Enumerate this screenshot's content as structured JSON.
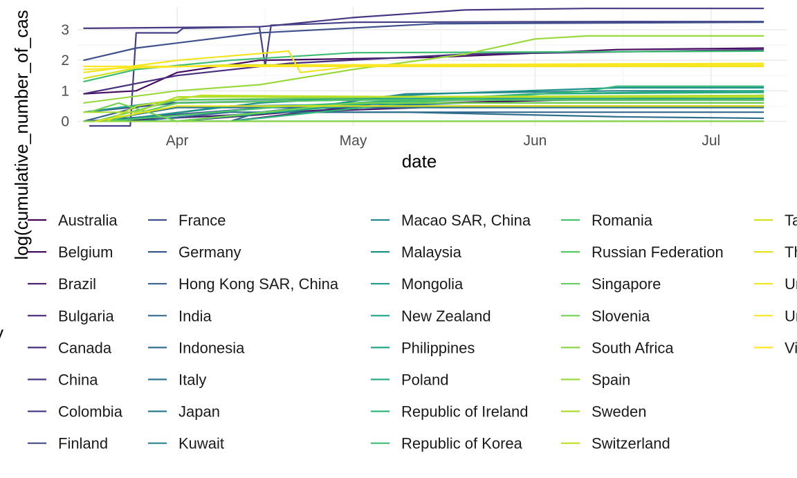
{
  "chart_data": {
    "type": "line",
    "title": "",
    "xlabel": "date",
    "ylabel": "log(cumulative_number_of_cas",
    "legend_title": "y",
    "legend_position": "bottom",
    "grid": true,
    "xlim": [
      "2020-03-15",
      "2020-07-14"
    ],
    "ylim": [
      -0.15,
      3.75
    ],
    "x_ticks": [
      {
        "date": "2020-04-01",
        "label": "Apr"
      },
      {
        "date": "2020-05-01",
        "label": "May"
      },
      {
        "date": "2020-06-01",
        "label": "Jun"
      },
      {
        "date": "2020-07-01",
        "label": "Jul"
      }
    ],
    "y_ticks": [
      0,
      1,
      2,
      3
    ],
    "series": [
      {
        "name": "Australia",
        "color": "#440154",
        "points": [
          [
            "2020-04-01",
            0
          ],
          [
            "2020-04-20",
            0.3
          ],
          [
            "2020-05-15",
            0.6
          ],
          [
            "2020-07-10",
            0.85
          ]
        ]
      },
      {
        "name": "Belgium",
        "color": "#450C5F",
        "points": [
          [
            "2020-03-16",
            0.9
          ],
          [
            "2020-03-25",
            1.0
          ],
          [
            "2020-04-01",
            1.6
          ],
          [
            "2020-04-15",
            2.0
          ],
          [
            "2020-05-15",
            2.1
          ],
          [
            "2020-06-15",
            2.35
          ],
          [
            "2020-07-10",
            2.4
          ]
        ]
      },
      {
        "name": "Brazil",
        "color": "#46186A",
        "points": [
          [
            "2020-03-20",
            0
          ],
          [
            "2020-04-20",
            0.3
          ],
          [
            "2020-05-20",
            0.5
          ],
          [
            "2020-07-10",
            0.5
          ]
        ]
      },
      {
        "name": "Bulgaria",
        "color": "#482373",
        "points": [
          [
            "2020-04-10",
            0
          ],
          [
            "2020-05-10",
            0.7
          ],
          [
            "2020-07-10",
            0.7
          ]
        ]
      },
      {
        "name": "Canada",
        "color": "#482D7B",
        "points": [
          [
            "2020-03-16",
            0.9
          ],
          [
            "2020-04-01",
            1.5
          ],
          [
            "2020-04-20",
            1.9
          ],
          [
            "2020-05-20",
            2.2
          ],
          [
            "2020-07-10",
            2.35
          ]
        ]
      },
      {
        "name": "China",
        "color": "#473681",
        "points": [
          [
            "2020-03-16",
            3.05
          ],
          [
            "2020-04-15",
            3.1
          ],
          [
            "2020-04-18",
            3.15
          ],
          [
            "2020-05-01",
            3.4
          ],
          [
            "2020-05-20",
            3.65
          ],
          [
            "2020-06-10",
            3.7
          ],
          [
            "2020-07-10",
            3.7
          ]
        ]
      },
      {
        "name": "Colombia",
        "color": "#453F86",
        "points": [
          [
            "2020-03-17",
            -0.15
          ],
          [
            "2020-03-24",
            -0.15
          ],
          [
            "2020-03-25",
            2.9
          ],
          [
            "2020-04-01",
            2.9
          ],
          [
            "2020-04-02",
            3.05
          ],
          [
            "2020-04-15",
            3.1
          ],
          [
            "2020-04-16",
            1.8
          ],
          [
            "2020-04-17",
            3.15
          ],
          [
            "2020-04-25",
            3.2
          ],
          [
            "2020-05-01",
            3.25
          ],
          [
            "2020-06-15",
            3.27
          ],
          [
            "2020-07-10",
            3.27
          ]
        ]
      },
      {
        "name": "Finland",
        "color": "#42488A",
        "points": [
          [
            "2020-03-16",
            0
          ],
          [
            "2020-04-20",
            0.5
          ],
          [
            "2020-07-10",
            0.5
          ]
        ]
      },
      {
        "name": "France",
        "color": "#3F508C",
        "points": [
          [
            "2020-03-16",
            2.0
          ],
          [
            "2020-03-25",
            2.4
          ],
          [
            "2020-04-15",
            2.9
          ],
          [
            "2020-05-15",
            3.2
          ],
          [
            "2020-07-10",
            3.25
          ]
        ]
      },
      {
        "name": "Germany",
        "color": "#3B588C",
        "points": [
          [
            "2020-03-16",
            0.3
          ],
          [
            "2020-04-01",
            0.6
          ],
          [
            "2020-05-01",
            0.7
          ],
          [
            "2020-07-10",
            0.75
          ]
        ]
      },
      {
        "name": "Hong Kong SAR, China",
        "color": "#37608D",
        "points": [
          [
            "2020-03-16",
            0
          ],
          [
            "2020-03-28",
            0.6
          ],
          [
            "2020-05-01",
            0.7
          ],
          [
            "2020-07-10",
            0.7
          ]
        ]
      },
      {
        "name": "India",
        "color": "#33678D",
        "points": [
          [
            "2020-03-20",
            0
          ],
          [
            "2020-04-10",
            0
          ],
          [
            "2020-04-15",
            0.3
          ],
          [
            "2020-05-10",
            0.3
          ],
          [
            "2020-06-10",
            0.3
          ],
          [
            "2020-07-10",
            0.3
          ]
        ]
      },
      {
        "name": "Indonesia",
        "color": "#306E8E",
        "points": [
          [
            "2020-03-25",
            0
          ],
          [
            "2020-04-10",
            0.3
          ],
          [
            "2020-05-10",
            0.3
          ],
          [
            "2020-06-15",
            0.15
          ],
          [
            "2020-07-10",
            0.1
          ]
        ]
      },
      {
        "name": "Italy",
        "color": "#2D758E",
        "points": [
          [
            "2020-03-18",
            0
          ],
          [
            "2020-04-01",
            0.45
          ],
          [
            "2020-05-10",
            0.45
          ],
          [
            "2020-06-20",
            0.45
          ],
          [
            "2020-07-10",
            0.45
          ]
        ]
      },
      {
        "name": "Japan",
        "color": "#2A7C8E",
        "points": [
          [
            "2020-04-01",
            0
          ],
          [
            "2020-04-20",
            0.4
          ],
          [
            "2020-05-20",
            0.6
          ],
          [
            "2020-07-10",
            0.6
          ]
        ]
      },
      {
        "name": "Kuwait",
        "color": "#27838E",
        "points": [
          [
            "2020-04-01",
            0
          ],
          [
            "2020-04-25",
            0.5
          ],
          [
            "2020-05-10",
            0.9
          ],
          [
            "2020-06-15",
            1.0
          ],
          [
            "2020-07-10",
            1.0
          ]
        ]
      },
      {
        "name": "Macao SAR, China",
        "color": "#248A8D",
        "points": [
          [
            "2020-03-20",
            0
          ],
          [
            "2020-04-10",
            0.5
          ],
          [
            "2020-05-20",
            0.6
          ],
          [
            "2020-07-10",
            0.6
          ]
        ]
      },
      {
        "name": "Malaysia",
        "color": "#21918C",
        "points": [
          [
            "2020-03-20",
            0
          ],
          [
            "2020-04-15",
            0.6
          ],
          [
            "2020-05-15",
            0.9
          ],
          [
            "2020-06-15",
            1.1
          ],
          [
            "2020-07-10",
            1.1
          ]
        ]
      },
      {
        "name": "Mongolia",
        "color": "#1F988B",
        "points": [
          [
            "2020-03-25",
            0
          ],
          [
            "2020-05-10",
            0
          ],
          [
            "2020-06-10",
            0
          ],
          [
            "2020-07-10",
            0
          ]
        ]
      },
      {
        "name": "New Zealand",
        "color": "#1FA088",
        "points": [
          [
            "2020-03-16",
            0.3
          ],
          [
            "2020-04-01",
            0.7
          ],
          [
            "2020-05-15",
            0.75
          ],
          [
            "2020-07-10",
            0.75
          ]
        ]
      },
      {
        "name": "Philippines",
        "color": "#22A785",
        "points": [
          [
            "2020-04-01",
            0
          ],
          [
            "2020-05-05",
            0.6
          ],
          [
            "2020-06-01",
            0.9
          ],
          [
            "2020-07-10",
            0.95
          ]
        ]
      },
      {
        "name": "Poland",
        "color": "#28AE80",
        "points": [
          [
            "2020-03-20",
            0
          ],
          [
            "2020-04-20",
            0.5
          ],
          [
            "2020-06-01",
            0.9
          ],
          [
            "2020-07-10",
            1.0
          ]
        ]
      },
      {
        "name": "Republic of Ireland",
        "color": "#32B67A",
        "points": [
          [
            "2020-04-10",
            0
          ],
          [
            "2020-05-10",
            0.6
          ],
          [
            "2020-06-10",
            1.0
          ],
          [
            "2020-06-15",
            1.15
          ],
          [
            "2020-07-10",
            1.15
          ]
        ]
      },
      {
        "name": "Republic of Korea",
        "color": "#3EBC73",
        "points": [
          [
            "2020-03-16",
            1.3
          ],
          [
            "2020-03-25",
            1.7
          ],
          [
            "2020-04-10",
            2.0
          ],
          [
            "2020-05-01",
            2.25
          ],
          [
            "2020-07-10",
            2.3
          ]
        ]
      },
      {
        "name": "Romania",
        "color": "#4AC16D",
        "points": [
          [
            "2020-03-20",
            0
          ],
          [
            "2020-04-20",
            0.5
          ],
          [
            "2020-05-20",
            0.7
          ],
          [
            "2020-07-10",
            0.7
          ]
        ]
      },
      {
        "name": "Russian Federation",
        "color": "#58C765",
        "points": [
          [
            "2020-03-20",
            0
          ],
          [
            "2020-04-01",
            0.6
          ],
          [
            "2020-05-01",
            0.7
          ],
          [
            "2020-07-10",
            0.7
          ]
        ]
      },
      {
        "name": "Singapore",
        "color": "#66CB5D",
        "points": [
          [
            "2020-03-18",
            0
          ],
          [
            "2020-04-01",
            0.7
          ],
          [
            "2020-05-10",
            0.8
          ],
          [
            "2020-07-10",
            0.8
          ]
        ]
      },
      {
        "name": "Slovenia",
        "color": "#77D153",
        "points": [
          [
            "2020-03-17",
            0.3
          ],
          [
            "2020-03-22",
            0.6
          ],
          [
            "2020-04-01",
            0
          ],
          [
            "2020-05-01",
            0.6
          ],
          [
            "2020-07-10",
            0.6
          ]
        ]
      },
      {
        "name": "South Africa",
        "color": "#88D548",
        "points": [
          [
            "2020-03-16",
            0
          ],
          [
            "2020-03-23",
            0
          ],
          [
            "2020-04-10",
            0
          ],
          [
            "2020-05-10",
            0
          ],
          [
            "2020-07-10",
            0
          ]
        ]
      },
      {
        "name": "Spain",
        "color": "#9AD93C",
        "points": [
          [
            "2020-03-16",
            0.6
          ],
          [
            "2020-04-01",
            1.0
          ],
          [
            "2020-04-15",
            1.2
          ],
          [
            "2020-05-01",
            1.7
          ],
          [
            "2020-05-20",
            2.2
          ],
          [
            "2020-06-01",
            2.7
          ],
          [
            "2020-06-10",
            2.8
          ],
          [
            "2020-07-10",
            2.8
          ]
        ]
      },
      {
        "name": "Sweden",
        "color": "#ADDC30",
        "points": [
          [
            "2020-03-16",
            0.3
          ],
          [
            "2020-03-25",
            0.3
          ],
          [
            "2020-04-01",
            0.8
          ],
          [
            "2020-05-01",
            0.8
          ],
          [
            "2020-07-10",
            0.85
          ]
        ]
      },
      {
        "name": "Switzerland",
        "color": "#BFDF25",
        "points": [
          [
            "2020-03-20",
            0
          ],
          [
            "2020-03-25",
            0.5
          ],
          [
            "2020-04-05",
            0.85
          ],
          [
            "2020-05-15",
            0.8
          ],
          [
            "2020-07-10",
            0.8
          ]
        ]
      },
      {
        "name": "Taiwan",
        "color": "#D2E21B",
        "points": [
          [
            "2020-03-16",
            1.4
          ],
          [
            "2020-03-25",
            1.75
          ],
          [
            "2020-04-10",
            1.85
          ],
          [
            "2020-07-10",
            1.85
          ]
        ]
      },
      {
        "name": "Thailand",
        "color": "#E4E419",
        "points": [
          [
            "2020-03-18",
            0
          ],
          [
            "2020-04-01",
            0.5
          ],
          [
            "2020-07-10",
            0.5
          ]
        ]
      },
      {
        "name": "United Kingdom",
        "color": "#F0E51C",
        "points": [
          [
            "2020-03-16",
            1.6
          ],
          [
            "2020-04-01",
            2.0
          ],
          [
            "2020-04-20",
            2.3
          ],
          [
            "2020-04-22",
            1.6
          ],
          [
            "2020-05-01",
            1.8
          ],
          [
            "2020-07-10",
            1.8
          ]
        ]
      },
      {
        "name": "United States",
        "color": "#F7E620",
        "points": [
          [
            "2020-03-16",
            1.8
          ],
          [
            "2020-04-01",
            1.8
          ],
          [
            "2020-05-01",
            1.8
          ],
          [
            "2020-07-10",
            1.85
          ]
        ]
      },
      {
        "name": "Viet Nam",
        "color": "#FDE725",
        "points": [
          [
            "2020-03-16",
            1.7
          ],
          [
            "2020-04-01",
            1.8
          ],
          [
            "2020-05-01",
            1.85
          ],
          [
            "2020-07-10",
            1.9
          ]
        ]
      }
    ]
  }
}
